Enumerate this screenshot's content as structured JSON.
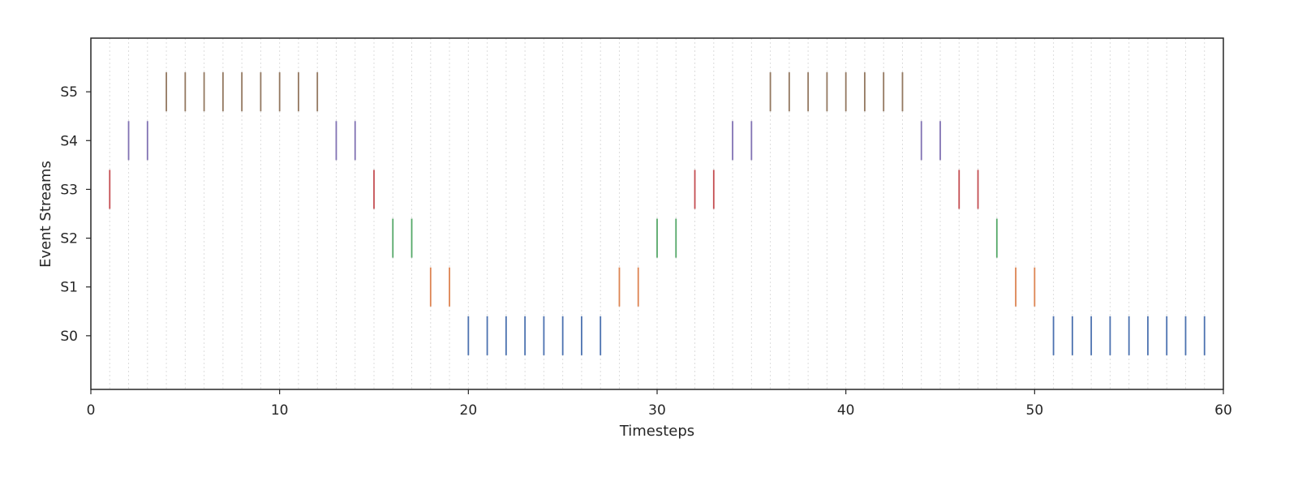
{
  "chart_data": {
    "type": "eventplot",
    "title": "",
    "xlabel": "Timesteps",
    "ylabel": "Event Streams",
    "xlim": [
      0,
      60
    ],
    "ylim": [
      -1.1,
      6.1
    ],
    "x_ticks": [
      0,
      10,
      20,
      30,
      40,
      50,
      60
    ],
    "grid": {
      "x_minor_dashed": true,
      "x_step": 1
    },
    "series": [
      {
        "name": "S0",
        "color": "#4c72b0",
        "events": [
          20,
          21,
          22,
          23,
          24,
          25,
          26,
          27,
          51,
          52,
          53,
          54,
          55,
          56,
          57,
          58,
          59
        ]
      },
      {
        "name": "S1",
        "color": "#dd8452",
        "events": [
          18,
          19,
          28,
          29,
          49,
          50
        ]
      },
      {
        "name": "S2",
        "color": "#55a868",
        "events": [
          16,
          17,
          30,
          31,
          48
        ]
      },
      {
        "name": "S3",
        "color": "#c44e52",
        "events": [
          1,
          15,
          32,
          33,
          46,
          47
        ]
      },
      {
        "name": "S4",
        "color": "#8172b3",
        "events": [
          2,
          3,
          13,
          14,
          34,
          35,
          44,
          45
        ]
      },
      {
        "name": "S5",
        "color": "#937860",
        "events": [
          4,
          5,
          6,
          7,
          8,
          9,
          10,
          11,
          12,
          36,
          37,
          38,
          39,
          40,
          41,
          42,
          43
        ]
      }
    ]
  }
}
